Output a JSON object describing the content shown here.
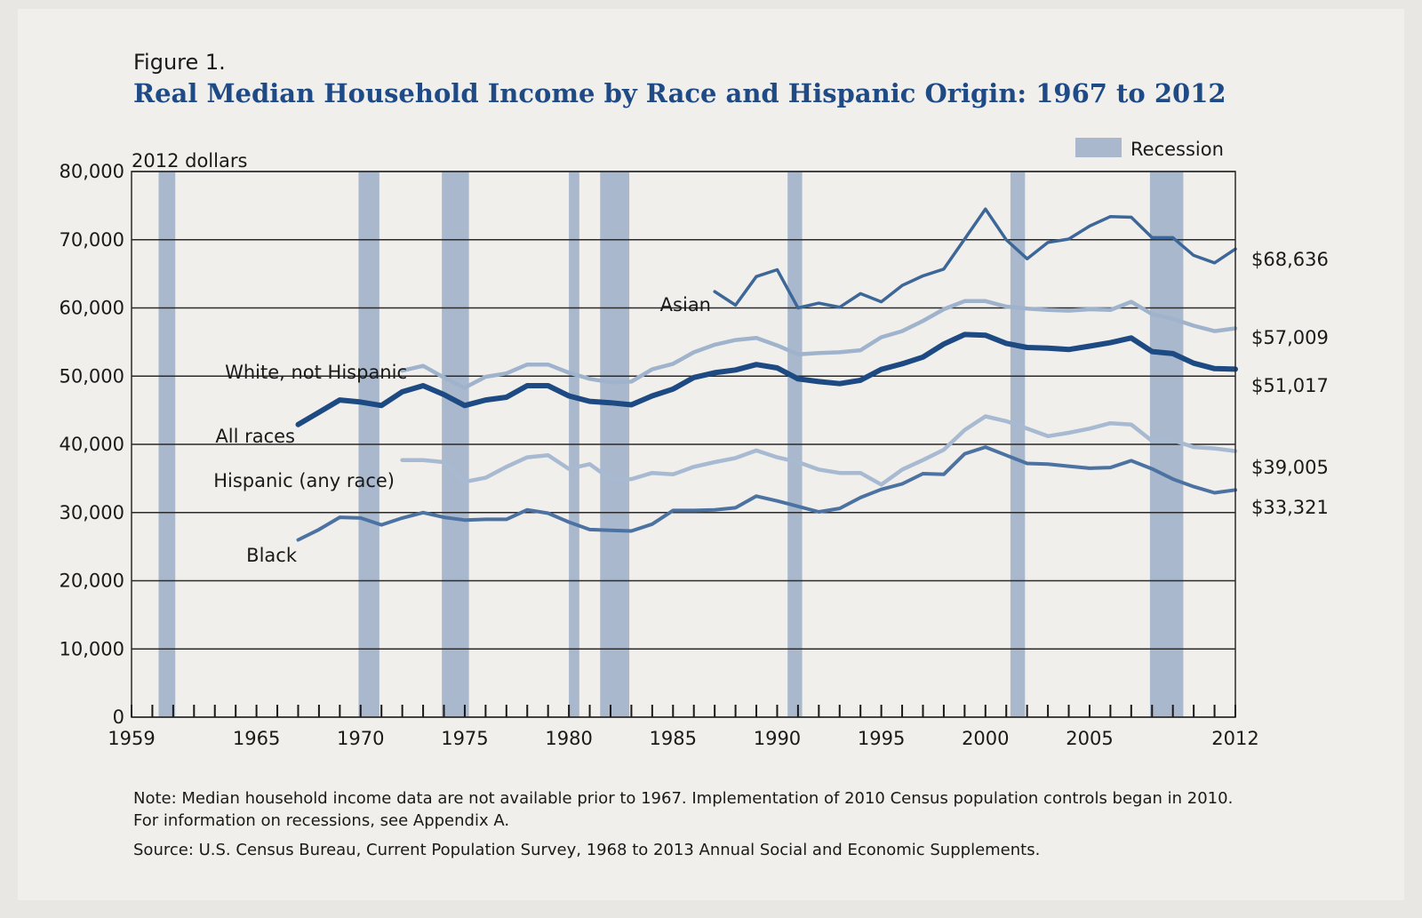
{
  "figure": {
    "label": "Figure 1.",
    "title": "Real Median Household Income by Race and Hispanic Origin: 1967 to 2012",
    "note": "Note: Median household income data are not available prior to 1967. Implementation of 2010 Census population controls began in 2010. For information on recessions, see Appendix A.",
    "source": "Source: U.S. Census Bureau, Current Population Survey, 1968 to 2013 Annual Social and Economic Supplements."
  },
  "colors": {
    "asian": "#3d6798",
    "white_not_hispanic": "#9fb3cc",
    "all_races": "#1d4a82",
    "hispanic": "#a8bad1",
    "black": "#4c72a2",
    "recession": "#a9b8cc",
    "grid": "#222222",
    "title": "#1e4a86"
  },
  "chart_data": {
    "type": "line",
    "ylabel": "2012 dollars",
    "xlim": [
      1959,
      2012
    ],
    "ylim": [
      0,
      80000
    ],
    "yticks": [
      0,
      10000,
      20000,
      30000,
      40000,
      50000,
      60000,
      70000,
      80000
    ],
    "ytick_labels": [
      "0",
      "10,000",
      "20,000",
      "30,000",
      "40,000",
      "50,000",
      "60,000",
      "70,000",
      "80,000"
    ],
    "xtick_labels": [
      "1959",
      "1965",
      "1970",
      "1975",
      "1980",
      "1985",
      "1990",
      "1995",
      "2000",
      "2005",
      "2012"
    ],
    "xtick_values": [
      1959,
      1965,
      1970,
      1975,
      1980,
      1985,
      1990,
      1995,
      2000,
      2005,
      2012
    ],
    "grid": true,
    "legend": {
      "label": "Recession",
      "placement": "top-right"
    },
    "recessions": [
      [
        1960.3,
        1961.1
      ],
      [
        1969.9,
        1970.9
      ],
      [
        1973.9,
        1975.2
      ],
      [
        1980.0,
        1980.5
      ],
      [
        1981.5,
        1982.9
      ],
      [
        1990.5,
        1991.2
      ],
      [
        2001.2,
        2001.9
      ],
      [
        2007.9,
        2009.5
      ]
    ],
    "series": [
      {
        "key": "asian",
        "name": "Asian",
        "end_label": "$68,636",
        "x": [
          1987,
          1988,
          1989,
          1990,
          1991,
          1992,
          1993,
          1994,
          1995,
          1996,
          1997,
          1998,
          1999,
          2000,
          2001,
          2002,
          2003,
          2004,
          2005,
          2006,
          2007,
          2008,
          2009,
          2010,
          2011,
          2012
        ],
        "y": [
          62400,
          60400,
          64600,
          65600,
          60000,
          60700,
          60100,
          62100,
          60900,
          63300,
          64700,
          65700,
          70100,
          74500,
          70000,
          67200,
          69600,
          70100,
          72000,
          73400,
          73300,
          70300,
          70300,
          67700,
          66600,
          68636
        ]
      },
      {
        "key": "white_not_hispanic",
        "name": "White, not Hispanic",
        "end_label": "$57,009",
        "x": [
          1972,
          1973,
          1974,
          1975,
          1976,
          1977,
          1978,
          1979,
          1980,
          1981,
          1982,
          1983,
          1984,
          1985,
          1986,
          1987,
          1988,
          1989,
          1990,
          1991,
          1992,
          1993,
          1994,
          1995,
          1996,
          1997,
          1998,
          1999,
          2000,
          2001,
          2002,
          2003,
          2004,
          2005,
          2006,
          2007,
          2008,
          2009,
          2010,
          2011,
          2012
        ],
        "y": [
          50800,
          51500,
          49800,
          48300,
          49900,
          50400,
          51700,
          51700,
          50500,
          49600,
          49100,
          49200,
          51000,
          51800,
          53500,
          54600,
          55300,
          55600,
          54500,
          53200,
          53400,
          53500,
          53800,
          55700,
          56600,
          58100,
          59800,
          61000,
          61000,
          60200,
          59900,
          59700,
          59600,
          59800,
          59700,
          60900,
          59100,
          58400,
          57400,
          56600,
          57009
        ]
      },
      {
        "key": "all_races",
        "name": "All races",
        "end_label": "$51,017",
        "x": [
          1967,
          1968,
          1969,
          1970,
          1971,
          1972,
          1973,
          1974,
          1975,
          1976,
          1977,
          1978,
          1979,
          1980,
          1981,
          1982,
          1983,
          1984,
          1985,
          1986,
          1987,
          1988,
          1989,
          1990,
          1991,
          1992,
          1993,
          1994,
          1995,
          1996,
          1997,
          1998,
          1999,
          2000,
          2001,
          2002,
          2003,
          2004,
          2005,
          2006,
          2007,
          2008,
          2009,
          2010,
          2011,
          2012
        ],
        "y": [
          42900,
          44700,
          46500,
          46200,
          45700,
          47700,
          48600,
          47300,
          45700,
          46500,
          46900,
          48600,
          48600,
          47100,
          46300,
          46100,
          45800,
          47100,
          48100,
          49800,
          50500,
          50900,
          51700,
          51200,
          49600,
          49200,
          48900,
          49400,
          51000,
          51800,
          52800,
          54700,
          56100,
          56000,
          54800,
          54200,
          54100,
          53900,
          54400,
          54900,
          55600,
          53600,
          53300,
          51900,
          51100,
          51017
        ]
      },
      {
        "key": "hispanic",
        "name": "Hispanic (any race)",
        "end_label": "$39,005",
        "x": [
          1972,
          1973,
          1974,
          1975,
          1976,
          1977,
          1978,
          1979,
          1980,
          1981,
          1982,
          1983,
          1984,
          1985,
          1986,
          1987,
          1988,
          1989,
          1990,
          1991,
          1992,
          1993,
          1994,
          1995,
          1996,
          1997,
          1998,
          1999,
          2000,
          2001,
          2002,
          2003,
          2004,
          2005,
          2006,
          2007,
          2008,
          2009,
          2010,
          2011,
          2012
        ],
        "y": [
          37700,
          37700,
          37400,
          34500,
          35100,
          36700,
          38100,
          38400,
          36400,
          37100,
          34900,
          34900,
          35800,
          35600,
          36700,
          37400,
          38000,
          39100,
          38100,
          37400,
          36300,
          35800,
          35800,
          34100,
          36300,
          37700,
          39200,
          42100,
          44100,
          43400,
          42300,
          41200,
          41700,
          42300,
          43100,
          42900,
          40500,
          40600,
          39600,
          39400,
          39005
        ]
      },
      {
        "key": "black",
        "name": "Black",
        "end_label": "$33,321",
        "x": [
          1967,
          1968,
          1969,
          1970,
          1971,
          1972,
          1973,
          1974,
          1975,
          1976,
          1977,
          1978,
          1979,
          1980,
          1981,
          1982,
          1983,
          1984,
          1985,
          1986,
          1987,
          1988,
          1989,
          1990,
          1991,
          1992,
          1993,
          1994,
          1995,
          1996,
          1997,
          1998,
          1999,
          2000,
          2001,
          2002,
          2003,
          2004,
          2005,
          2006,
          2007,
          2008,
          2009,
          2010,
          2011,
          2012
        ],
        "y": [
          26000,
          27500,
          29300,
          29200,
          28200,
          29200,
          30000,
          29300,
          28900,
          29000,
          29000,
          30400,
          29900,
          28600,
          27500,
          27400,
          27300,
          28300,
          30300,
          30300,
          30400,
          30700,
          32400,
          31700,
          30900,
          30100,
          30600,
          32200,
          33400,
          34200,
          35700,
          35600,
          38600,
          39600,
          38400,
          37200,
          37100,
          36800,
          36500,
          36600,
          37600,
          36400,
          34900,
          33800,
          32900,
          33321
        ]
      }
    ]
  }
}
